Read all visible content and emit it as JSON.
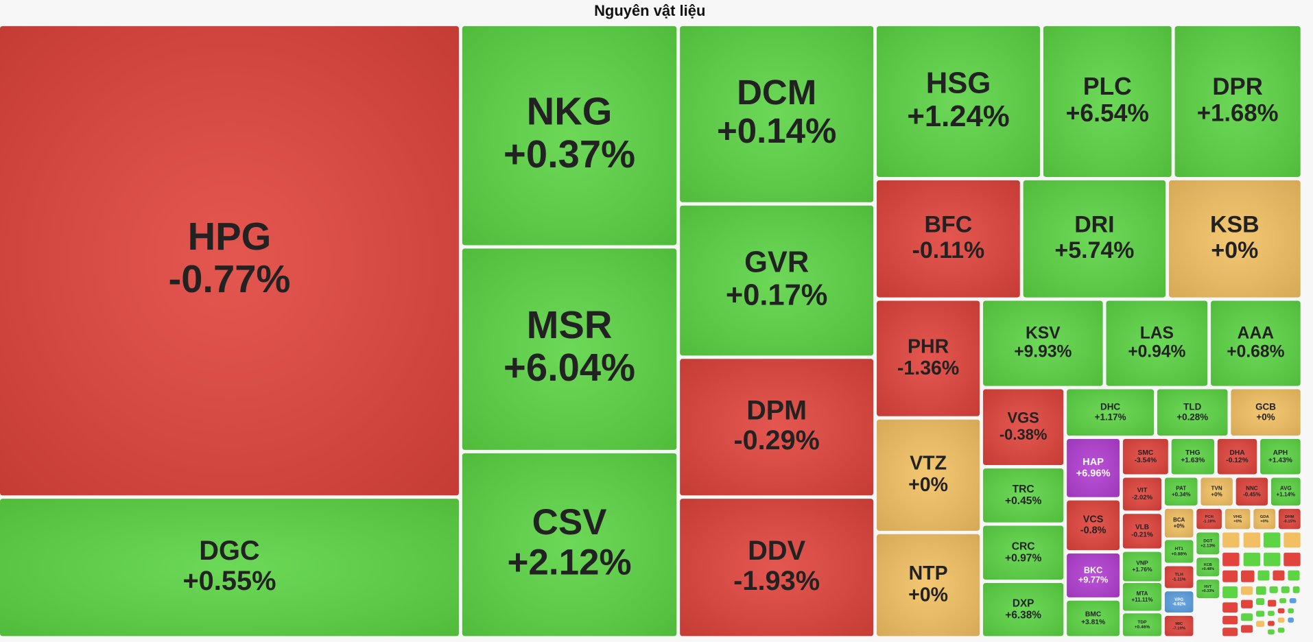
{
  "chart_data": {
    "type": "treemap",
    "title": "Nguyên vật liệu",
    "categories": [
      "HPG",
      "DGC",
      "NKG",
      "MSR",
      "CSV",
      "DCM",
      "GVR",
      "DPM",
      "DDV",
      "HSG",
      "PLC",
      "DPR",
      "BFC",
      "DRI",
      "KSB",
      "PHR",
      "VTZ",
      "NTP",
      "KSV",
      "LAS",
      "AAA",
      "VGS",
      "TRC",
      "CRC",
      "DXP",
      "DHC",
      "TLD",
      "GCB",
      "HAP",
      "VCS",
      "BKC",
      "BMC",
      "SMC",
      "THG",
      "DHA",
      "APH",
      "VIT",
      "VLB",
      "VNP",
      "MTA",
      "TDP",
      "PAT",
      "TVN",
      "NNC",
      "AVG",
      "BCA",
      "PCH",
      "VHG",
      "GDA",
      "DHM",
      "HT1",
      "DGT",
      "KCB",
      "TLH",
      "HVT",
      "VPG",
      "MIC"
    ],
    "values": [
      -0.77,
      0.55,
      0.37,
      6.04,
      2.12,
      0.14,
      0.17,
      -0.29,
      -1.93,
      1.24,
      6.54,
      1.68,
      -0.11,
      5.74,
      0,
      -1.36,
      0,
      0,
      9.93,
      0.94,
      0.68,
      -0.38,
      0.45,
      0.97,
      6.38,
      1.17,
      0.28,
      0,
      6.96,
      -0.8,
      9.77,
      3.81,
      -3.54,
      1.63,
      -0.12,
      1.43,
      -2.02,
      -0.21,
      1.76,
      11.11,
      0.46,
      0.34,
      0,
      -0.45,
      1.14,
      0,
      -1.18,
      0,
      0,
      -0.15,
      0.88,
      2.13,
      0.48,
      -1.11,
      0.33,
      -6.92,
      -7.19
    ],
    "value_labels": [
      "-0.77%",
      "+0.55%",
      "+0.37%",
      "+6.04%",
      "+2.12%",
      "+0.14%",
      "+0.17%",
      "-0.29%",
      "-1.93%",
      "+1.24%",
      "+6.54%",
      "+1.68%",
      "-0.11%",
      "+5.74%",
      "+0%",
      "-1.36%",
      "+0%",
      "+0%",
      "+9.93%",
      "+0.94%",
      "+0.68%",
      "-0.38%",
      "+0.45%",
      "+0.97%",
      "+6.38%",
      "+1.17%",
      "+0.28%",
      "+0%",
      "+6.96%",
      "-0.8%",
      "+9.77%",
      "+3.81%",
      "-3.54%",
      "+1.63%",
      "-0.12%",
      "+1.43%",
      "-2.02%",
      "-0.21%",
      "+1.76%",
      "+11.11%",
      "+0.46%",
      "+0.34%",
      "+0%",
      "-0.45%",
      "+1.14%",
      "+0%",
      "-1.18%",
      "+0%",
      "+0%",
      "-0.15%",
      "+0.88%",
      "+2.13%",
      "+0.48%",
      "-1.11%",
      "+0.33%",
      "-6.92%",
      "-7.19%"
    ],
    "colors": [
      "#e0443c",
      "#5cd444",
      "#5cd444",
      "#5cd444",
      "#5cd444",
      "#5cd444",
      "#5cd444",
      "#e0443c",
      "#e0443c",
      "#5cd444",
      "#5cd444",
      "#5cd444",
      "#e0443c",
      "#5cd444",
      "#f2c062",
      "#e0443c",
      "#f2c062",
      "#f2c062",
      "#5cd444",
      "#5cd444",
      "#5cd444",
      "#e0443c",
      "#5cd444",
      "#5cd444",
      "#5cd444",
      "#5cd444",
      "#5cd444",
      "#f2c062",
      "#b23ed2",
      "#e0443c",
      "#b23ed2",
      "#5cd444",
      "#e0443c",
      "#5cd444",
      "#e0443c",
      "#5cd444",
      "#e0443c",
      "#e0443c",
      "#5cd444",
      "#5cd444",
      "#5cd444",
      "#5cd444",
      "#f2c062",
      "#e0443c",
      "#5cd444",
      "#f2c062",
      "#e0443c",
      "#f2c062",
      "#f2c062",
      "#e0443c",
      "#5cd444",
      "#5cd444",
      "#5cd444",
      "#e0443c",
      "#5cd444",
      "#5b9fe0",
      "#e0443c"
    ]
  }
}
